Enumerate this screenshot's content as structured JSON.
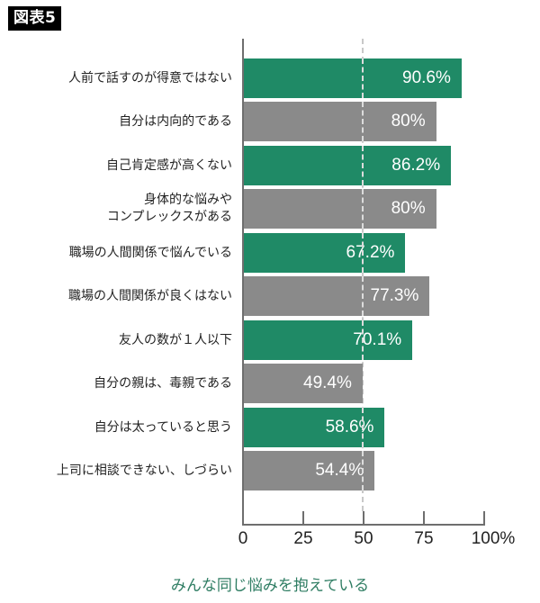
{
  "badge": {
    "label": "図表5"
  },
  "caption": "みんな同じ悩みを抱えている",
  "colors": {
    "green": "#1f8a66",
    "grey": "#8a8a8a",
    "caption": "#2f7d63",
    "axis": "#6e6e6e"
  },
  "axis": {
    "ticks": [
      {
        "value": 0,
        "label": "0"
      },
      {
        "value": 25,
        "label": "25"
      },
      {
        "value": 50,
        "label": "50"
      },
      {
        "value": 75,
        "label": "75"
      },
      {
        "value": 100,
        "label": "100%"
      }
    ]
  },
  "bars": [
    {
      "label": "人前で話すのが得意ではない",
      "value": 90.6,
      "display": "90.6%",
      "color": "green"
    },
    {
      "label": "自分は内向的である",
      "value": 80,
      "display": "80%",
      "color": "grey"
    },
    {
      "label": "自己肯定感が高くない",
      "value": 86.2,
      "display": "86.2%",
      "color": "green"
    },
    {
      "label": "身体的な悩みや\nコンプレックスがある",
      "label_lines": [
        "身体的な悩みや",
        "コンプレックスがある"
      ],
      "value": 80,
      "display": "80%",
      "color": "grey"
    },
    {
      "label": "職場の人間関係で悩んでいる",
      "value": 67.2,
      "display": "67.2%",
      "color": "green"
    },
    {
      "label": "職場の人間関係が良くはない",
      "value": 77.3,
      "display": "77.3%",
      "color": "grey"
    },
    {
      "label": "友人の数が１人以下",
      "value": 70.1,
      "display": "70.1%",
      "color": "green"
    },
    {
      "label": "自分の親は、毒親である",
      "value": 49.4,
      "display": "49.4%",
      "color": "grey"
    },
    {
      "label": "自分は太っていると思う",
      "value": 58.6,
      "display": "58.6%",
      "color": "green"
    },
    {
      "label": "上司に相談できない、しづらい",
      "value": 54.4,
      "display": "54.4%",
      "color": "grey"
    }
  ],
  "chart_data": {
    "type": "bar",
    "orientation": "horizontal",
    "title": "図表5",
    "caption": "みんな同じ悩みを抱えている",
    "categories": [
      "人前で話すのが得意ではない",
      "自分は内向的である",
      "自己肯定感が高くない",
      "身体的な悩みやコンプレックスがある",
      "職場の人間関係で悩んでいる",
      "職場の人間関係が良くはない",
      "友人の数が１人以下",
      "自分の親は、毒親である",
      "自分は太っていると思う",
      "上司に相談できない、しづらい"
    ],
    "values": [
      90.6,
      80,
      86.2,
      80,
      67.2,
      77.3,
      70.1,
      49.4,
      58.6,
      54.4
    ],
    "xlabel": "",
    "ylabel": "",
    "xlim": [
      0,
      100
    ],
    "xticks": [
      "0",
      "25",
      "50",
      "75",
      "100%"
    ],
    "reference_line": {
      "x": 50,
      "style": "dashed"
    },
    "bar_colors": [
      "#1f8a66",
      "#8a8a8a",
      "#1f8a66",
      "#8a8a8a",
      "#1f8a66",
      "#8a8a8a",
      "#1f8a66",
      "#8a8a8a",
      "#1f8a66",
      "#8a8a8a"
    ],
    "data_labels": true,
    "grid": false,
    "legend": null
  }
}
